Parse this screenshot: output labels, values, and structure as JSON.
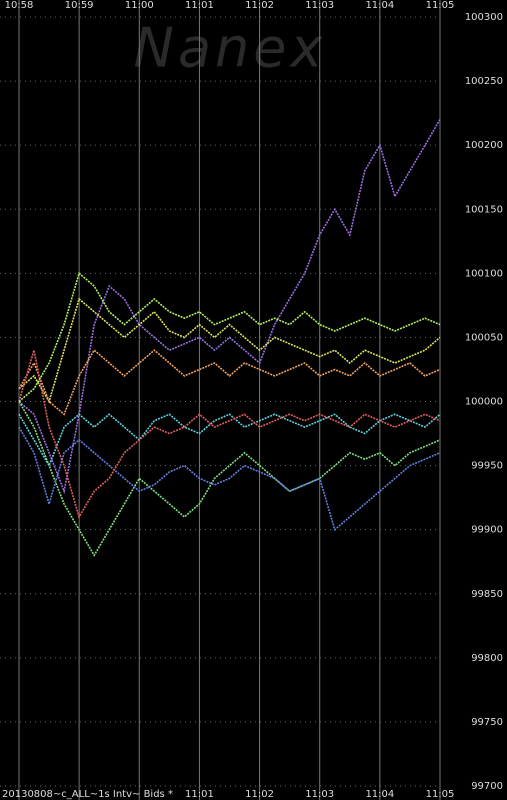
{
  "chart_data": {
    "type": "line",
    "watermark": "Nanex",
    "footer": "20130808~c_ALL~1s Intv~ Bids *",
    "x": [
      0,
      0.25,
      0.5,
      0.75,
      1,
      1.25,
      1.5,
      1.75,
      2,
      2.25,
      2.5,
      2.75,
      3,
      3.25,
      3.5,
      3.75,
      4,
      4.25,
      4.5,
      4.75,
      5,
      5.25,
      5.5,
      5.75,
      6,
      6.25,
      6.5,
      6.75,
      7
    ],
    "xlim": [
      0,
      7
    ],
    "xticks": [
      {
        "value": 0,
        "label": "10:58"
      },
      {
        "value": 1,
        "label": "10:59"
      },
      {
        "value": 2,
        "label": "11:00"
      },
      {
        "value": 3,
        "label": "11:01"
      },
      {
        "value": 4,
        "label": "11:02"
      },
      {
        "value": 5,
        "label": "11:03"
      },
      {
        "value": 6,
        "label": "11:04"
      },
      {
        "value": 7,
        "label": "11:05"
      }
    ],
    "ylim": [
      99700,
      100300
    ],
    "yticks": [
      99700,
      99750,
      99800,
      99850,
      99900,
      99950,
      100000,
      100050,
      100100,
      100150,
      100200,
      100250,
      100300
    ],
    "grid": true,
    "series": [
      {
        "color": "#9a6fe0",
        "values": [
          100000,
          99990,
          99960,
          99930,
          99990,
          100060,
          100090,
          100080,
          100060,
          100050,
          100040,
          100045,
          100050,
          100040,
          100050,
          100040,
          100030,
          100060,
          100080,
          100100,
          100130,
          100150,
          100130,
          100180,
          100200,
          100160,
          100180,
          100200,
          100220
        ]
      },
      {
        "color": "#7fe07f",
        "values": [
          100000,
          99980,
          99950,
          99920,
          99900,
          99880,
          99900,
          99920,
          99940,
          99930,
          99920,
          99910,
          99920,
          99940,
          99950,
          99960,
          99950,
          99940,
          99930,
          99935,
          99940,
          99950,
          99960,
          99955,
          99960,
          99950,
          99960,
          99965,
          99970
        ]
      },
      {
        "color": "#e0e060",
        "values": [
          100010,
          100020,
          100000,
          100040,
          100080,
          100070,
          100060,
          100050,
          100060,
          100070,
          100055,
          100050,
          100060,
          100050,
          100060,
          100050,
          100040,
          100050,
          100045,
          100040,
          100035,
          100040,
          100030,
          100040,
          100035,
          100030,
          100035,
          100040,
          100050
        ]
      },
      {
        "color": "#60d0e0",
        "values": [
          99990,
          99970,
          99950,
          99980,
          99990,
          99980,
          99990,
          99980,
          99970,
          99985,
          99990,
          99980,
          99975,
          99985,
          99990,
          99980,
          99985,
          99990,
          99985,
          99980,
          99985,
          99990,
          99980,
          99975,
          99985,
          99990,
          99985,
          99980,
          99990
        ]
      },
      {
        "color": "#f0a060",
        "values": [
          100010,
          100030,
          100000,
          99990,
          100020,
          100040,
          100030,
          100020,
          100030,
          100040,
          100030,
          100020,
          100025,
          100030,
          100020,
          100030,
          100025,
          100020,
          100025,
          100030,
          100020,
          100025,
          100020,
          100030,
          100020,
          100025,
          100030,
          100020,
          100025
        ]
      },
      {
        "color": "#6080e0",
        "values": [
          99980,
          99960,
          99920,
          99960,
          99970,
          99960,
          99950,
          99940,
          99930,
          99935,
          99945,
          99950,
          99940,
          99935,
          99940,
          99950,
          99945,
          99940,
          99930,
          99935,
          99940,
          99900,
          99910,
          99920,
          99930,
          99940,
          99950,
          99955,
          99960
        ]
      },
      {
        "color": "#e06060",
        "values": [
          100000,
          100040,
          99980,
          99950,
          99910,
          99930,
          99940,
          99960,
          99970,
          99980,
          99975,
          99980,
          99990,
          99980,
          99985,
          99990,
          99980,
          99985,
          99990,
          99985,
          99990,
          99985,
          99980,
          99990,
          99985,
          99980,
          99985,
          99990,
          99985
        ]
      },
      {
        "color": "#b0f060",
        "values": [
          100000,
          100010,
          100030,
          100060,
          100100,
          100090,
          100070,
          100060,
          100070,
          100080,
          100070,
          100065,
          100070,
          100060,
          100065,
          100070,
          100060,
          100065,
          100060,
          100070,
          100060,
          100055,
          100060,
          100065,
          100060,
          100055,
          100060,
          100065,
          100060
        ]
      }
    ]
  }
}
